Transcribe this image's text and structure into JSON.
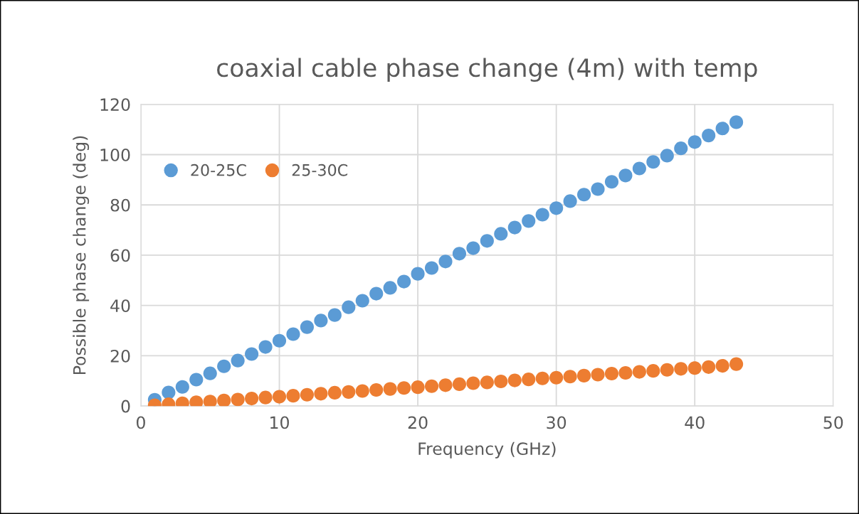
{
  "chart_data": {
    "type": "scatter",
    "title": "coaxial cable phase change (4m) with temp",
    "xlabel": "Frequency (GHz)",
    "ylabel": "Possible phase change (deg)",
    "x": [
      1,
      2,
      3,
      4,
      5,
      6,
      7,
      8,
      9,
      10,
      11,
      12,
      13,
      14,
      15,
      16,
      17,
      18,
      19,
      20,
      21,
      22,
      23,
      24,
      25,
      26,
      27,
      28,
      29,
      30,
      31,
      32,
      33,
      34,
      35,
      36,
      37,
      38,
      39,
      40,
      41,
      42,
      43
    ],
    "series": [
      {
        "name": "20-25C",
        "color": "#5b9bd5",
        "values": [
          2.5,
          5.4,
          7.6,
          10.5,
          13,
          15.8,
          18.1,
          20.7,
          23.5,
          26,
          28.6,
          31.4,
          34,
          36.2,
          39.3,
          41.9,
          44.7,
          47,
          49.5,
          52.6,
          54.9,
          57.5,
          60.6,
          62.8,
          65.7,
          68.5,
          71,
          73.6,
          76.1,
          78.7,
          81.5,
          84.1,
          86.3,
          89.2,
          91.7,
          94.5,
          97.1,
          99.6,
          102.5,
          105,
          107.6,
          110.4,
          112.9
        ]
      },
      {
        "name": "25-30C",
        "color": "#ed7d31",
        "values": [
          0.3,
          0.7,
          1.1,
          1.5,
          1.8,
          2.2,
          2.6,
          3.0,
          3.4,
          3.7,
          4.1,
          4.5,
          4.9,
          5.3,
          5.6,
          6.0,
          6.4,
          6.8,
          7.2,
          7.5,
          7.9,
          8.3,
          8.7,
          9.1,
          9.4,
          9.8,
          10.2,
          10.6,
          11.0,
          11.3,
          11.7,
          12.1,
          12.5,
          12.9,
          13.2,
          13.6,
          14.0,
          14.4,
          14.8,
          15.1,
          15.5,
          16.0,
          16.7
        ]
      }
    ],
    "xlim": [
      0,
      50
    ],
    "xticks": [
      0,
      10,
      20,
      30,
      40,
      50
    ],
    "ylim": [
      0,
      120
    ],
    "yticks": [
      0,
      20,
      40,
      60,
      80,
      100,
      120
    ],
    "grid": true,
    "legend": "top left",
    "marker": "circle"
  }
}
